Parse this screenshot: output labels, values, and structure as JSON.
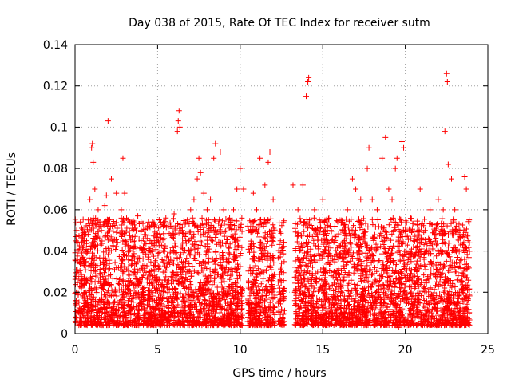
{
  "chart_data": {
    "type": "scatter",
    "title": "Day 038 of 2015, Rate Of TEC Index for receiver sutm",
    "xlabel": "GPS time / hours",
    "ylabel": "ROTI / TECUs",
    "xlim": [
      0,
      25
    ],
    "ylim": [
      0,
      0.14
    ],
    "x_ticks": [
      0,
      5,
      10,
      15,
      20,
      25
    ],
    "x_tick_labels": [
      "0",
      "5",
      "10",
      "15",
      "20",
      "25"
    ],
    "y_ticks": [
      0,
      0.02,
      0.04,
      0.06,
      0.08,
      0.1,
      0.12,
      0.14
    ],
    "y_tick_labels": [
      "0",
      "0.02",
      "0.04",
      "0.06",
      "0.08",
      "0.1",
      "0.12",
      "0.14"
    ],
    "grid": true,
    "marker": "plus",
    "color": "#ff0000",
    "series": [
      {
        "name": "ROTI",
        "points": [
          [
            0.05,
            0.008
          ],
          [
            0.1,
            0.05
          ],
          [
            0.2,
            0.04
          ],
          [
            0.3,
            0.025
          ],
          [
            0.5,
            0.035
          ],
          [
            0.7,
            0.045
          ],
          [
            0.8,
            0.055
          ],
          [
            0.9,
            0.065
          ],
          [
            1.0,
            0.09
          ],
          [
            1.05,
            0.092
          ],
          [
            1.1,
            0.083
          ],
          [
            1.2,
            0.07
          ],
          [
            1.4,
            0.06
          ],
          [
            1.6,
            0.05
          ],
          [
            1.8,
            0.062
          ],
          [
            1.9,
            0.067
          ],
          [
            2.0,
            0.103
          ],
          [
            2.2,
            0.075
          ],
          [
            2.5,
            0.068
          ],
          [
            2.8,
            0.06
          ],
          [
            2.9,
            0.085
          ],
          [
            3.0,
            0.068
          ],
          [
            3.2,
            0.055
          ],
          [
            3.5,
            0.05
          ],
          [
            3.8,
            0.057
          ],
          [
            4.0,
            0.05
          ],
          [
            4.2,
            0.048
          ],
          [
            4.5,
            0.052
          ],
          [
            4.8,
            0.045
          ],
          [
            5.0,
            0.048
          ],
          [
            5.2,
            0.054
          ],
          [
            5.5,
            0.056
          ],
          [
            5.8,
            0.052
          ],
          [
            6.0,
            0.058
          ],
          [
            6.2,
            0.098
          ],
          [
            6.25,
            0.103
          ],
          [
            6.3,
            0.108
          ],
          [
            6.35,
            0.1
          ],
          [
            6.5,
            0.05
          ],
          [
            6.8,
            0.055
          ],
          [
            7.0,
            0.06
          ],
          [
            7.2,
            0.065
          ],
          [
            7.4,
            0.075
          ],
          [
            7.5,
            0.085
          ],
          [
            7.6,
            0.078
          ],
          [
            7.8,
            0.068
          ],
          [
            8.0,
            0.06
          ],
          [
            8.2,
            0.065
          ],
          [
            8.4,
            0.085
          ],
          [
            8.5,
            0.092
          ],
          [
            8.8,
            0.088
          ],
          [
            9.0,
            0.06
          ],
          [
            9.3,
            0.055
          ],
          [
            9.6,
            0.06
          ],
          [
            9.8,
            0.07
          ],
          [
            10.0,
            0.08
          ],
          [
            10.2,
            0.07
          ],
          [
            10.5,
            0.05
          ],
          [
            10.8,
            0.068
          ],
          [
            11.0,
            0.06
          ],
          [
            11.2,
            0.085
          ],
          [
            11.5,
            0.072
          ],
          [
            11.7,
            0.083
          ],
          [
            11.8,
            0.088
          ],
          [
            12.0,
            0.065
          ],
          [
            12.3,
            0.025
          ],
          [
            12.5,
            0.03
          ],
          [
            13.2,
            0.072
          ],
          [
            13.5,
            0.06
          ],
          [
            13.8,
            0.072
          ],
          [
            14.0,
            0.115
          ],
          [
            14.1,
            0.122
          ],
          [
            14.15,
            0.124
          ],
          [
            14.2,
            0.055
          ],
          [
            14.5,
            0.06
          ],
          [
            14.8,
            0.055
          ],
          [
            15.0,
            0.065
          ],
          [
            15.5,
            0.05
          ],
          [
            16.0,
            0.055
          ],
          [
            16.2,
            0.05
          ],
          [
            16.5,
            0.06
          ],
          [
            16.8,
            0.075
          ],
          [
            17.0,
            0.07
          ],
          [
            17.3,
            0.065
          ],
          [
            17.7,
            0.08
          ],
          [
            17.8,
            0.09
          ],
          [
            18.0,
            0.065
          ],
          [
            18.3,
            0.06
          ],
          [
            18.6,
            0.085
          ],
          [
            18.8,
            0.095
          ],
          [
            19.0,
            0.07
          ],
          [
            19.2,
            0.065
          ],
          [
            19.4,
            0.08
          ],
          [
            19.5,
            0.085
          ],
          [
            19.8,
            0.093
          ],
          [
            19.9,
            0.09
          ],
          [
            20.0,
            0.05
          ],
          [
            20.5,
            0.045
          ],
          [
            20.9,
            0.07
          ],
          [
            21.2,
            0.05
          ],
          [
            21.5,
            0.06
          ],
          [
            21.8,
            0.05
          ],
          [
            22.0,
            0.065
          ],
          [
            22.3,
            0.06
          ],
          [
            22.4,
            0.098
          ],
          [
            22.5,
            0.126
          ],
          [
            22.55,
            0.122
          ],
          [
            22.6,
            0.082
          ],
          [
            22.8,
            0.075
          ],
          [
            23.0,
            0.06
          ],
          [
            23.3,
            0.05
          ],
          [
            23.6,
            0.076
          ],
          [
            23.7,
            0.07
          ],
          [
            23.8,
            0.045
          ],
          [
            0.4,
            0.012
          ],
          [
            1.5,
            0.015
          ],
          [
            2.5,
            0.01
          ],
          [
            3.5,
            0.012
          ],
          [
            4.5,
            0.008
          ],
          [
            5.5,
            0.01
          ],
          [
            6.5,
            0.006
          ],
          [
            7.5,
            0.008
          ],
          [
            8.5,
            0.01
          ],
          [
            9.5,
            0.012
          ],
          [
            10.6,
            0.005
          ],
          [
            11.5,
            0.008
          ],
          [
            12.4,
            0.006
          ],
          [
            13.6,
            0.01
          ],
          [
            14.6,
            0.008
          ],
          [
            15.6,
            0.01
          ],
          [
            16.6,
            0.012
          ],
          [
            17.6,
            0.008
          ],
          [
            18.6,
            0.01
          ],
          [
            19.6,
            0.003
          ],
          [
            20.6,
            0.008
          ],
          [
            21.6,
            0.01
          ],
          [
            22.6,
            0.012
          ],
          [
            23.6,
            0.01
          ]
        ]
      }
    ]
  }
}
